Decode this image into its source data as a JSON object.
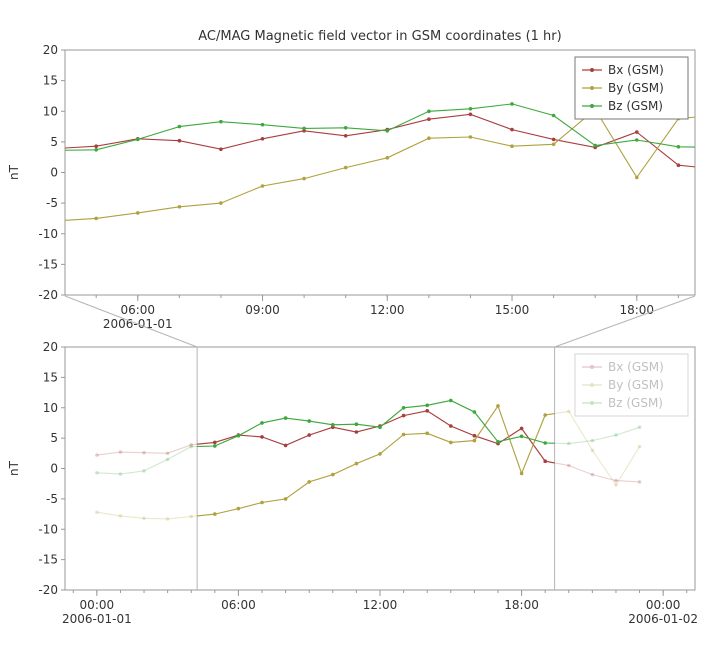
{
  "figure": {
    "background": "#ffffff",
    "axis_color": "#999999",
    "text_color": "#333333",
    "connector_color": "#b5b5b5",
    "faded_opacity": 0.25,
    "legend_faded_opacity": 0.3
  },
  "chart_data": [
    {
      "id": "zoom-1hr",
      "type": "line",
      "title": "AC/MAG  Magnetic field vector in GSM coordinates (1 hr)",
      "ylabel": "nT",
      "ylim": [
        -20,
        20
      ],
      "ytick_step": 5,
      "ytick_labels": [
        "-20",
        "-15",
        "-10",
        "-5",
        "0",
        "5",
        "10",
        "15",
        "20"
      ],
      "xlim_hours": [
        4.25,
        19.4
      ],
      "xticks": [
        {
          "hour": 6,
          "label": "06:00",
          "sub": "2006-01-01"
        },
        {
          "hour": 9,
          "label": "09:00"
        },
        {
          "hour": 12,
          "label": "12:00"
        },
        {
          "hour": 15,
          "label": "15:00"
        },
        {
          "hour": 18,
          "label": "18:00"
        }
      ],
      "legend": {
        "position": "top-right",
        "faded": false,
        "entries": [
          "Bx (GSM)",
          "By (GSM)",
          "Bz (GSM)"
        ]
      },
      "series": [
        {
          "name": "Bx (GSM)",
          "color": "#a93e3e",
          "x_hours": [
            4,
            5,
            6,
            7,
            8,
            9,
            10,
            11,
            12,
            13,
            14,
            15,
            16,
            17,
            18,
            19,
            20
          ],
          "values": [
            3.9,
            4.3,
            5.5,
            5.2,
            3.8,
            5.5,
            6.8,
            6.0,
            7.0,
            8.7,
            9.5,
            7.0,
            5.4,
            4.1,
            6.6,
            1.2,
            0.5
          ]
        },
        {
          "name": "By (GSM)",
          "color": "#b0a13e",
          "x_hours": [
            4,
            5,
            6,
            7,
            8,
            9,
            10,
            11,
            12,
            13,
            14,
            15,
            16,
            17,
            18,
            19,
            20
          ],
          "values": [
            -7.9,
            -7.5,
            -6.6,
            -5.6,
            -5.0,
            -2.2,
            -1.0,
            0.8,
            2.4,
            5.6,
            5.8,
            4.3,
            4.6,
            10.3,
            -0.8,
            8.8,
            9.4
          ]
        },
        {
          "name": "Bz (GSM)",
          "color": "#3da83d",
          "x_hours": [
            4,
            5,
            6,
            7,
            8,
            9,
            10,
            11,
            12,
            13,
            14,
            15,
            16,
            17,
            18,
            19,
            20
          ],
          "values": [
            3.6,
            3.7,
            5.4,
            7.5,
            8.3,
            7.8,
            7.2,
            7.3,
            6.8,
            10.0,
            10.4,
            11.2,
            9.3,
            4.4,
            5.3,
            4.2,
            4.1
          ]
        }
      ]
    },
    {
      "id": "context-24hr",
      "type": "line",
      "title": "",
      "ylabel": "nT",
      "ylim": [
        -20,
        20
      ],
      "ytick_step": 5,
      "ytick_labels": [
        "-20",
        "-15",
        "-10",
        "-5",
        "0",
        "5",
        "10",
        "15",
        "20"
      ],
      "xlim_hours": [
        -1.35,
        25.35
      ],
      "xticks": [
        {
          "hour": 0,
          "label": "00:00",
          "sub": "2006-01-01"
        },
        {
          "hour": 6,
          "label": "06:00"
        },
        {
          "hour": 12,
          "label": "12:00"
        },
        {
          "hour": 18,
          "label": "18:00"
        },
        {
          "hour": 24,
          "label": "00:00",
          "sub": "2006-01-02"
        }
      ],
      "zoom_region_hours": [
        4.25,
        19.4
      ],
      "legend": {
        "position": "top-right",
        "faded": true,
        "entries": [
          "Bx (GSM)",
          "By (GSM)",
          "Bz (GSM)"
        ]
      },
      "series": [
        {
          "name": "Bx (GSM)",
          "color": "#a93e3e",
          "x_hours": [
            0,
            1,
            2,
            3,
            4,
            5,
            6,
            7,
            8,
            9,
            10,
            11,
            12,
            13,
            14,
            15,
            16,
            17,
            18,
            19,
            20,
            21,
            22,
            23
          ],
          "values": [
            2.2,
            2.7,
            2.6,
            2.5,
            3.9,
            4.3,
            5.5,
            5.2,
            3.8,
            5.5,
            6.8,
            6.0,
            7.0,
            8.7,
            9.5,
            7.0,
            5.4,
            4.1,
            6.6,
            1.2,
            0.5,
            -1.0,
            -2.0,
            -2.2
          ]
        },
        {
          "name": "By (GSM)",
          "color": "#b0a13e",
          "x_hours": [
            0,
            1,
            2,
            3,
            4,
            5,
            6,
            7,
            8,
            9,
            10,
            11,
            12,
            13,
            14,
            15,
            16,
            17,
            18,
            19,
            20,
            21,
            22,
            23
          ],
          "values": [
            -7.2,
            -7.8,
            -8.2,
            -8.3,
            -7.9,
            -7.5,
            -6.6,
            -5.6,
            -5.0,
            -2.2,
            -1.0,
            0.8,
            2.4,
            5.6,
            5.8,
            4.3,
            4.6,
            10.3,
            -0.8,
            8.8,
            9.4,
            3.0,
            -2.7,
            3.6
          ]
        },
        {
          "name": "Bz (GSM)",
          "color": "#3da83d",
          "x_hours": [
            0,
            1,
            2,
            3,
            4,
            5,
            6,
            7,
            8,
            9,
            10,
            11,
            12,
            13,
            14,
            15,
            16,
            17,
            18,
            19,
            20,
            21,
            22,
            23
          ],
          "values": [
            -0.7,
            -0.9,
            -0.4,
            1.5,
            3.6,
            3.7,
            5.4,
            7.5,
            8.3,
            7.8,
            7.2,
            7.3,
            6.8,
            10.0,
            10.4,
            11.2,
            9.3,
            4.4,
            5.3,
            4.2,
            4.1,
            4.6,
            5.5,
            6.8
          ]
        }
      ]
    }
  ]
}
